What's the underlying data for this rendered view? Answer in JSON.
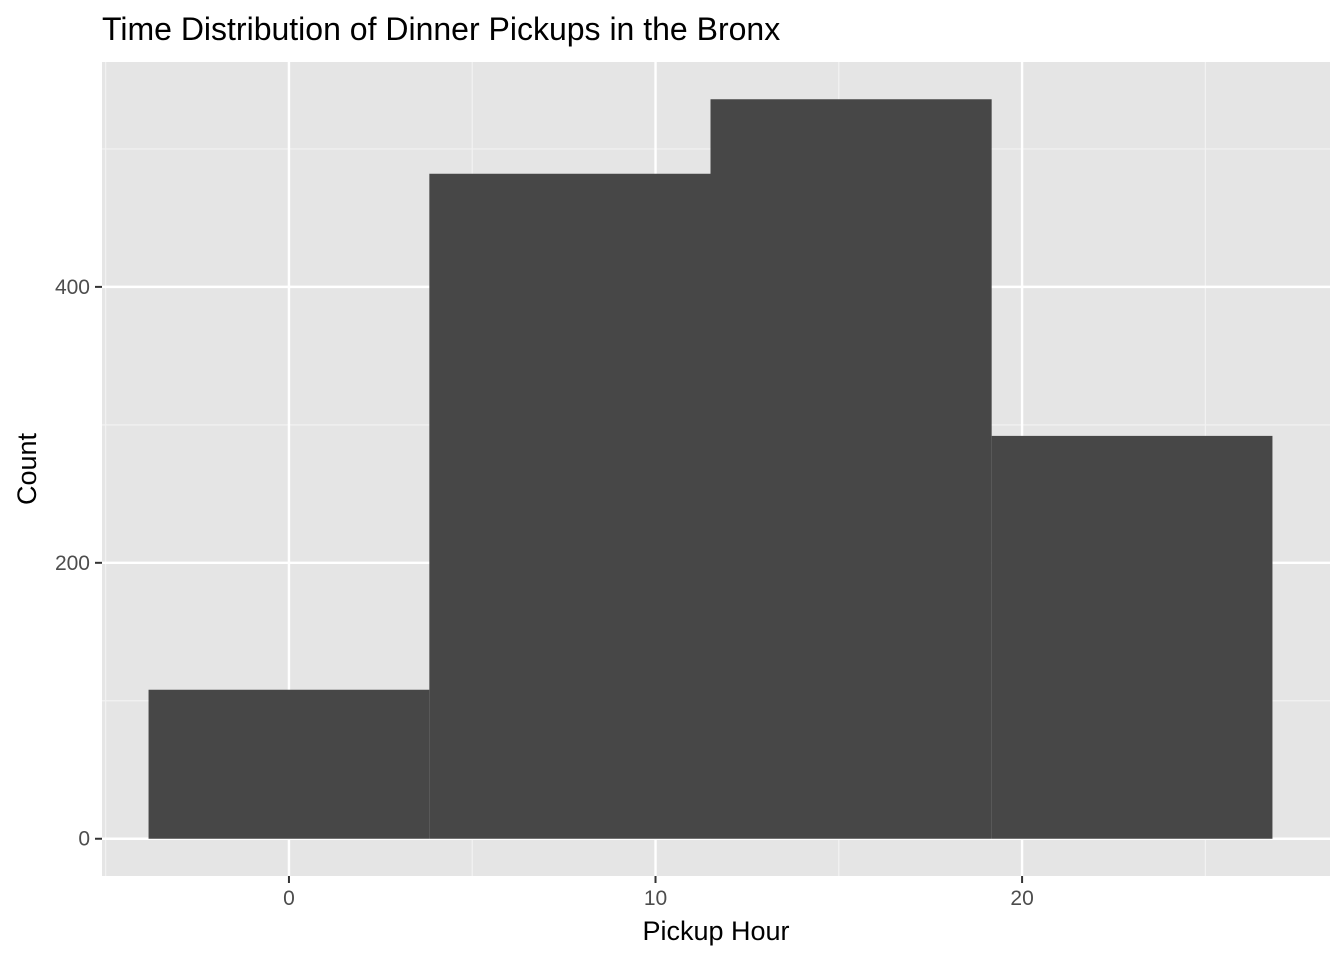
{
  "chart_data": {
    "type": "histogram",
    "title": "Time Distribution of Dinner Pickups in the Bronx",
    "xlabel": "Pickup Hour",
    "ylabel": "Count",
    "xlim": [
      -5.1,
      28.4
    ],
    "ylim": [
      -27,
      563
    ],
    "x_ticks": [
      0,
      10,
      20
    ],
    "y_ticks": [
      0,
      200,
      400
    ],
    "bins": [
      {
        "x_start": -3.83,
        "x_end": 3.83,
        "count": 108
      },
      {
        "x_start": 3.83,
        "x_end": 11.5,
        "count": 482
      },
      {
        "x_start": 11.5,
        "x_end": 19.17,
        "count": 536
      },
      {
        "x_start": 19.17,
        "x_end": 26.83,
        "count": 292
      }
    ],
    "bar_color": "#474747",
    "panel_color": "#e5e5e5",
    "grid": true,
    "legend": "none"
  }
}
